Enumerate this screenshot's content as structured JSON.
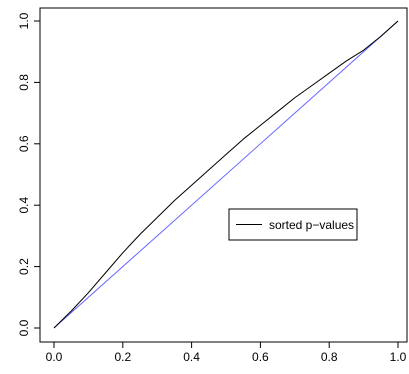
{
  "chart_data": {
    "type": "line",
    "title": "",
    "xlabel": "",
    "ylabel": "",
    "xlim": [
      0,
      1
    ],
    "ylim": [
      0,
      1
    ],
    "x_ticks": [
      0.0,
      0.2,
      0.4,
      0.6,
      0.8,
      1.0
    ],
    "x_tick_labels": [
      "0.0",
      "0.2",
      "0.4",
      "0.6",
      "0.8",
      "1.0"
    ],
    "y_ticks": [
      0.0,
      0.2,
      0.4,
      0.6,
      0.8,
      1.0
    ],
    "y_tick_labels": [
      "0.0",
      "0.2",
      "0.4",
      "0.6",
      "0.8",
      "1.0"
    ],
    "grid": false,
    "legend": {
      "position": "center-right",
      "entries": [
        "sorted p−values"
      ]
    },
    "series": [
      {
        "name": "sorted p−values",
        "color": "#000000",
        "x": [
          0.0,
          0.05,
          0.1,
          0.15,
          0.2,
          0.25,
          0.3,
          0.35,
          0.4,
          0.45,
          0.5,
          0.55,
          0.6,
          0.65,
          0.7,
          0.75,
          0.8,
          0.85,
          0.9,
          0.95,
          1.0
        ],
        "y": [
          0.0,
          0.055,
          0.115,
          0.18,
          0.245,
          0.305,
          0.36,
          0.415,
          0.465,
          0.515,
          0.565,
          0.615,
          0.66,
          0.705,
          0.75,
          0.79,
          0.83,
          0.87,
          0.905,
          0.95,
          1.0
        ]
      },
      {
        "color": "#6666ff",
        "x": [
          0.0,
          1.0
        ],
        "y": [
          0.0,
          1.0
        ]
      }
    ]
  }
}
